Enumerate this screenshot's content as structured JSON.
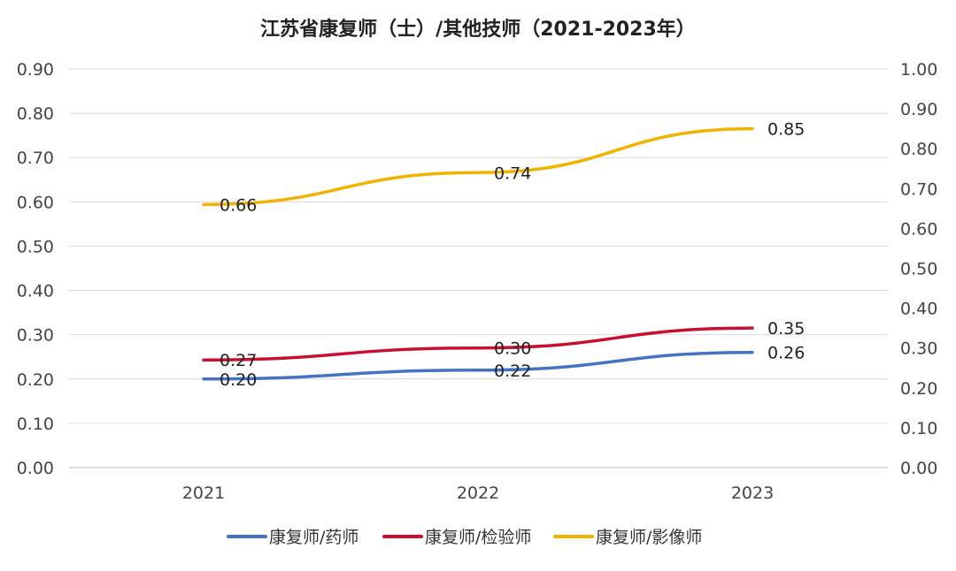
{
  "chart_data": {
    "type": "line",
    "title": "江苏省康复师（士）/其他技师（2021-2023年）",
    "categories": [
      "2021",
      "2022",
      "2023"
    ],
    "ylim_left": [
      0,
      0.9
    ],
    "yticks_left": [
      "0.00",
      "0.10",
      "0.20",
      "0.30",
      "0.40",
      "0.50",
      "0.60",
      "0.70",
      "0.80",
      "0.90"
    ],
    "ylim_right": [
      0,
      1.0
    ],
    "yticks_right": [
      "0.00",
      "0.10",
      "0.20",
      "0.30",
      "0.40",
      "0.50",
      "0.60",
      "0.70",
      "0.80",
      "0.90",
      "1.00"
    ],
    "grid": true,
    "legend_position": "bottom",
    "series": [
      {
        "name": "康复师/药师",
        "color": "#4472C4",
        "values": [
          0.2,
          0.22,
          0.26
        ],
        "labels": [
          "0.20",
          "0.22",
          "0.26"
        ],
        "axis": "left"
      },
      {
        "name": "康复师/检验师",
        "color": "#C8102E",
        "values": [
          0.27,
          0.3,
          0.35
        ],
        "labels": [
          "0.27",
          "0.30",
          "0.35"
        ],
        "axis": "right"
      },
      {
        "name": "康复师/影像师",
        "color": "#F0B400",
        "values": [
          0.66,
          0.74,
          0.85
        ],
        "labels": [
          "0.66",
          "0.74",
          "0.85"
        ],
        "axis": "right"
      }
    ]
  }
}
